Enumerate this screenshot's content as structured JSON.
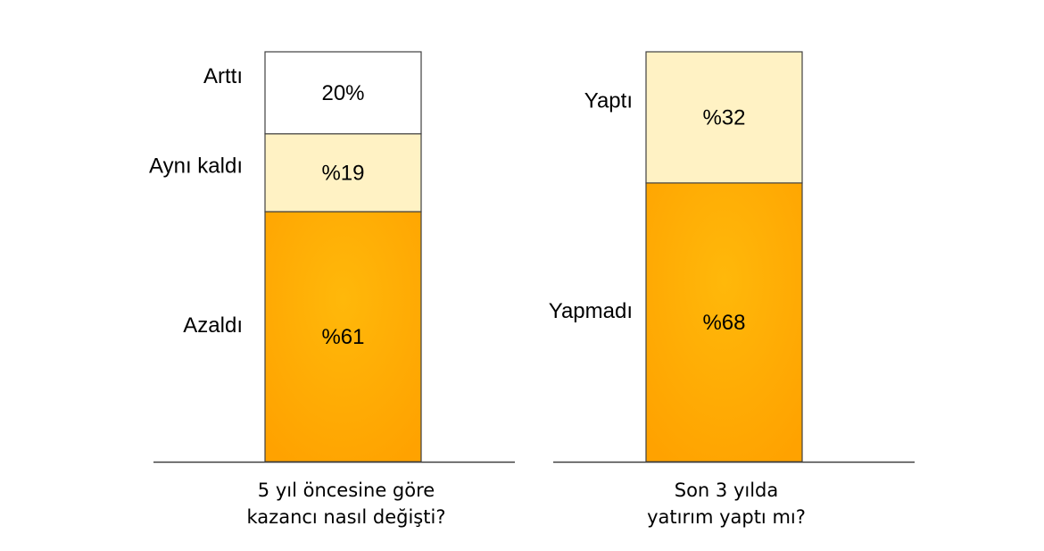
{
  "chart_data": [
    {
      "type": "bar",
      "stacked": true,
      "ylim": [
        0,
        100
      ],
      "category_label": [
        "5 yıl öncesine göre",
        "kazancı nasıl değişti?"
      ],
      "series": [
        {
          "name": "Azaldı",
          "value": 61,
          "label": "%61",
          "color": "#ffa800"
        },
        {
          "name": "Aynı kaldı",
          "value": 19,
          "label": "%19",
          "color": "#fff2c4"
        },
        {
          "name": "Arttı",
          "value": 20,
          "label": "20%",
          "color": "#ffffff"
        }
      ]
    },
    {
      "type": "bar",
      "stacked": true,
      "ylim": [
        0,
        100
      ],
      "category_label": [
        "Son 3 yılda",
        "yatırım yaptı mı?"
      ],
      "series": [
        {
          "name": "Yapmadı",
          "value": 68,
          "label": "%68",
          "color": "#ffa800"
        },
        {
          "name": "Yaptı",
          "value": 32,
          "label": "%32",
          "color": "#fff2c4"
        }
      ]
    }
  ]
}
